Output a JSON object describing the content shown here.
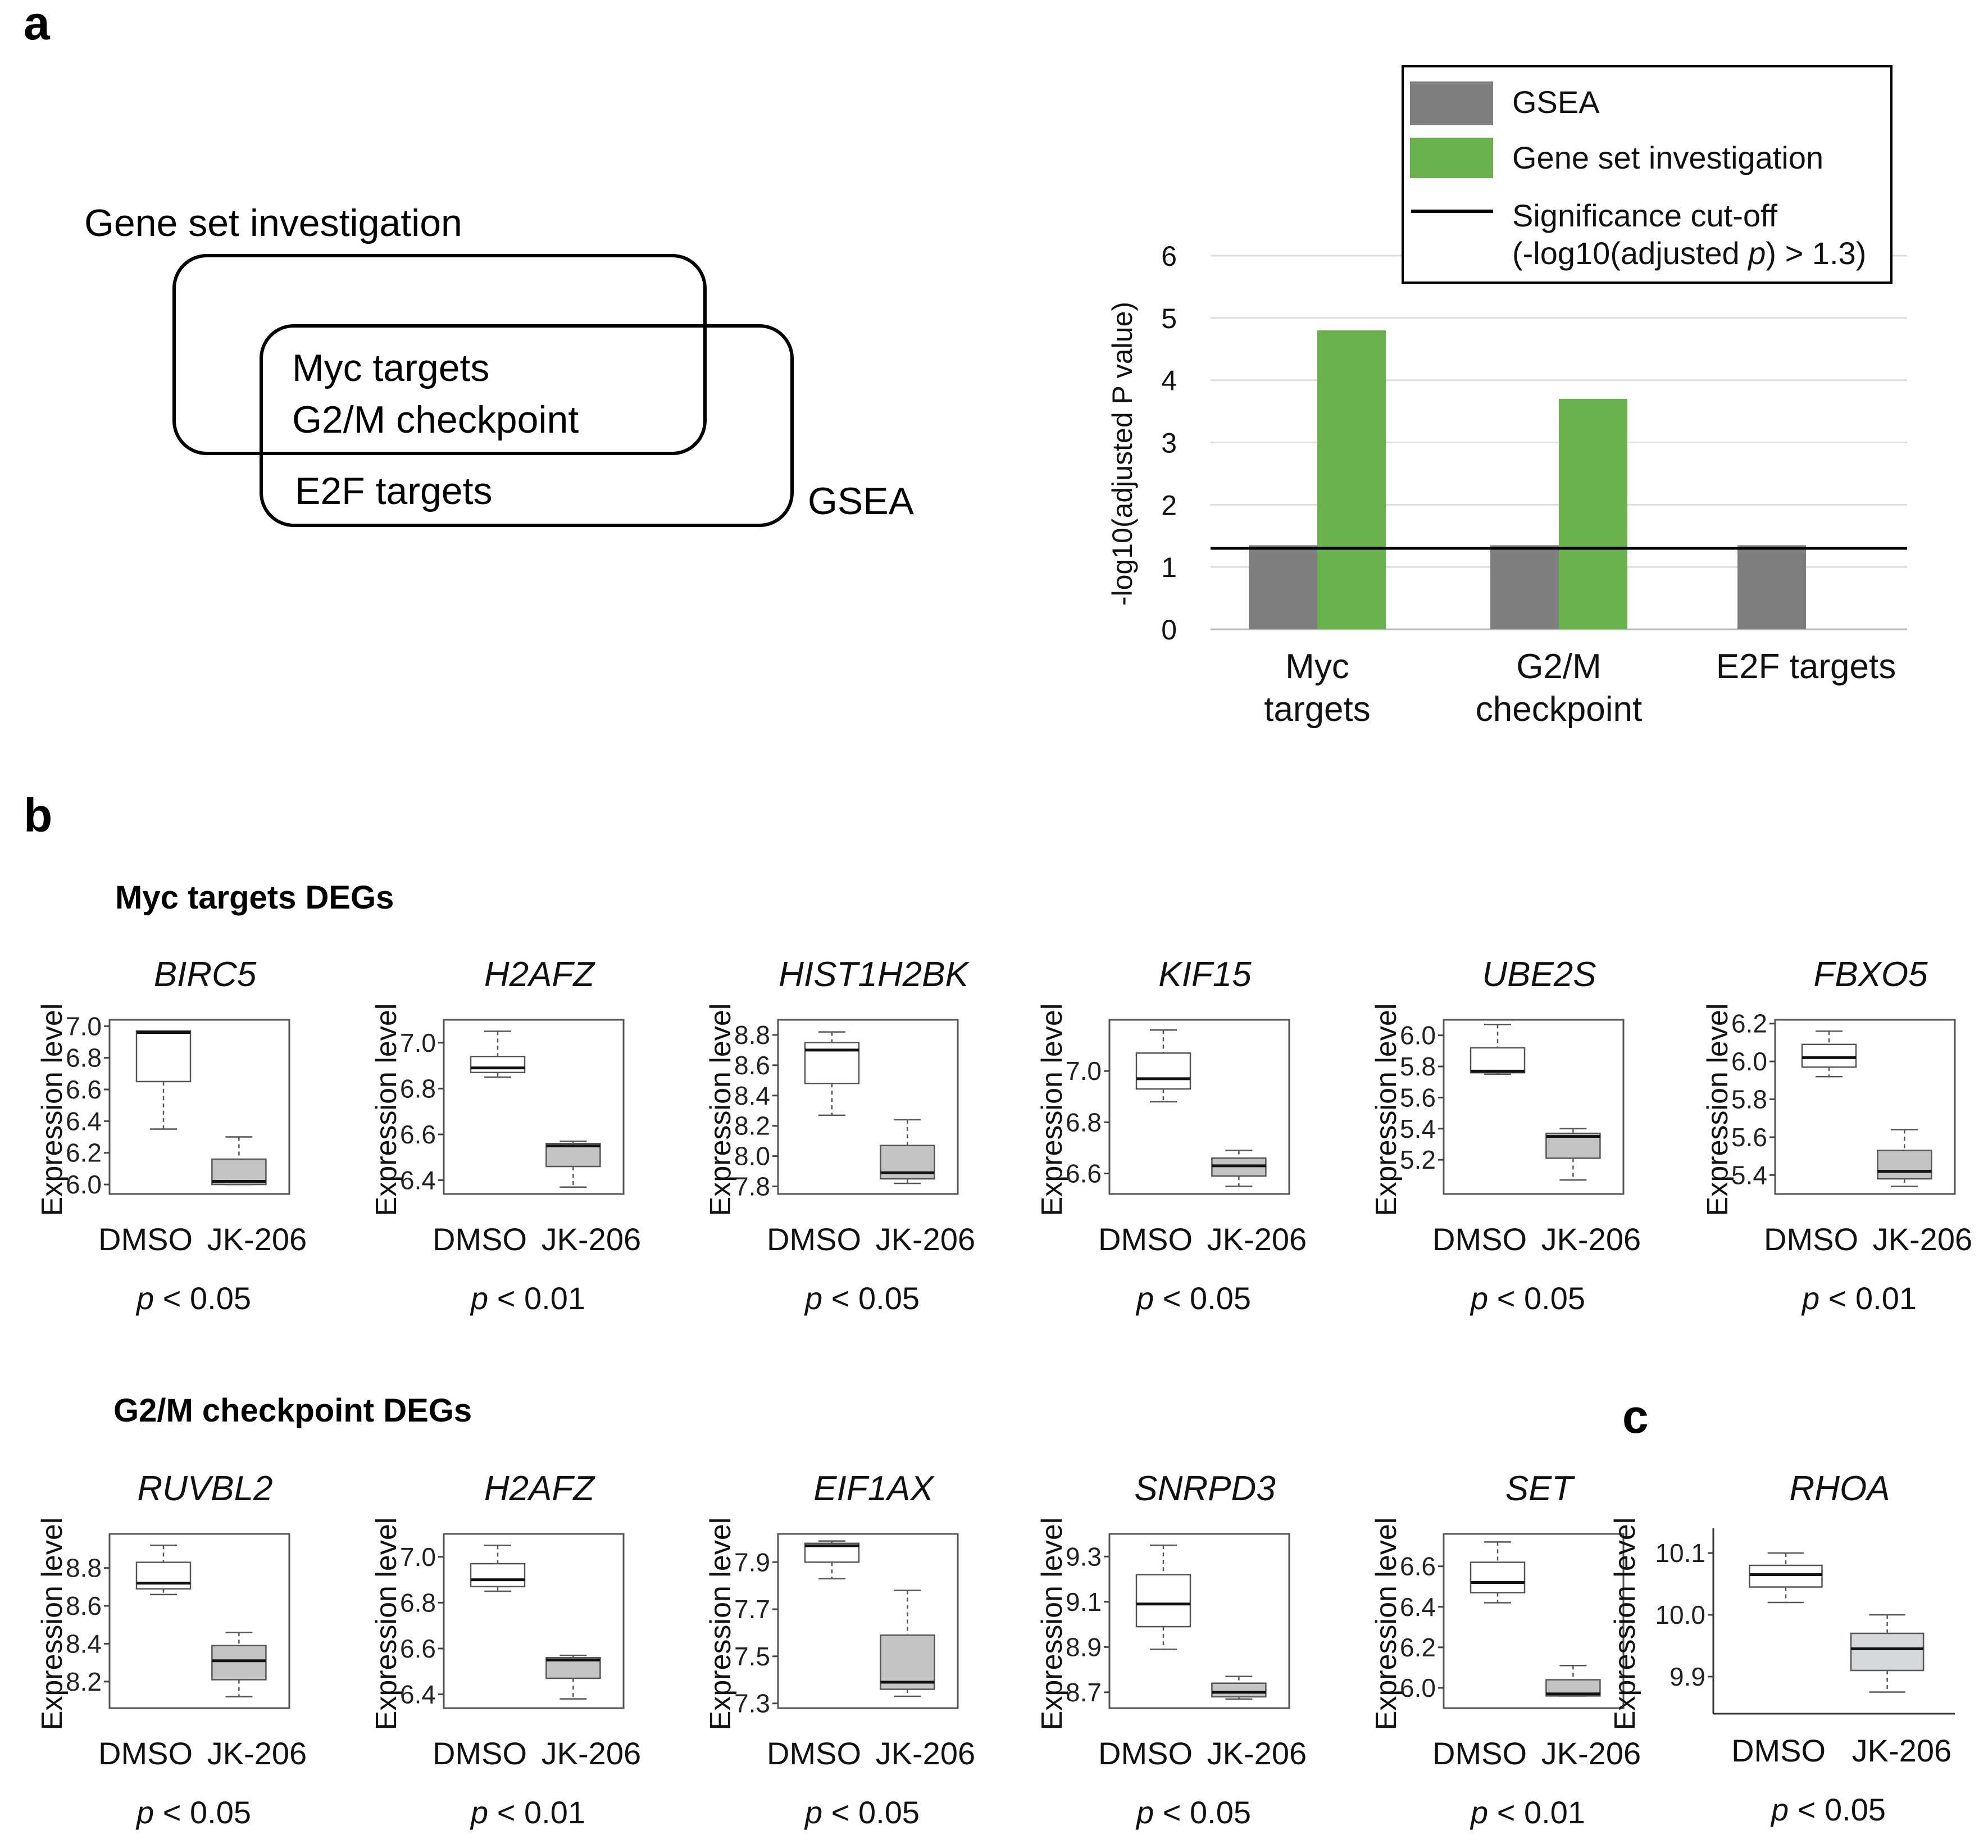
{
  "panel_labels": {
    "a": "a",
    "b": "b",
    "c": "c"
  },
  "venn": {
    "set_left": "Gene set investigation",
    "set_right": "GSEA",
    "overlap_items": [
      "Myc targets",
      "G2/M checkpoint"
    ],
    "right_only_items": [
      "E2F targets"
    ]
  },
  "sections": {
    "myc": "Myc targets DEGs",
    "g2m": "G2/M checkpoint DEGs"
  },
  "box_common": {
    "ylabel": "Expression level",
    "groups": [
      "DMSO",
      "JK-206"
    ]
  },
  "colors": {
    "gsea": "#7f7f7f",
    "gene_set": "#6ab04c",
    "box_dmso": "#ffffff",
    "box_jk": "#c4c4c4",
    "box_jk_rhoa": "#d5d9db"
  },
  "chart_data": [
    {
      "type": "bar",
      "id": "panel-a-bar",
      "title": "",
      "xlabel": "",
      "ylabel": "-log10(adjusted P value)",
      "categories": [
        [
          "Myc",
          "targets"
        ],
        [
          "G2/M",
          "checkpoint"
        ],
        [
          "E2F targets"
        ]
      ],
      "series": [
        {
          "name": "GSEA",
          "values": [
            1.35,
            1.35,
            1.35
          ]
        },
        {
          "name": "Gene set investigation",
          "values": [
            4.8,
            3.7,
            null
          ]
        }
      ],
      "reference_line": {
        "value": 1.3,
        "label_lines": [
          "Significance cut-off",
          "(-log10(adjusted ",
          "p",
          ") > 1.3)"
        ]
      },
      "ylim": [
        0,
        6
      ],
      "yticks": [
        0,
        1,
        2,
        3,
        4,
        5,
        6
      ],
      "legend_position": "top-right",
      "grid": true
    },
    {
      "type": "box",
      "id": "myc-birc5",
      "title": "BIRC5",
      "pvalue": "< 0.05",
      "ylim": [
        5.94,
        7.04
      ],
      "yticks": [
        "6.0",
        "6.2",
        "6.4",
        "6.6",
        "6.8",
        "7.0"
      ],
      "boxes": [
        {
          "group": "DMSO",
          "min": 6.35,
          "q1": 6.65,
          "median": 6.96,
          "q3": 6.97,
          "max": 6.97
        },
        {
          "group": "JK-206",
          "min": 6.0,
          "q1": 6.0,
          "median": 6.02,
          "q3": 6.16,
          "max": 6.3
        }
      ]
    },
    {
      "type": "box",
      "id": "myc-h2afz",
      "title": "H2AFZ",
      "pvalue": "< 0.01",
      "ylim": [
        6.34,
        7.1
      ],
      "yticks": [
        "6.4",
        "6.6",
        "6.8",
        "7.0"
      ],
      "boxes": [
        {
          "group": "DMSO",
          "min": 6.85,
          "q1": 6.87,
          "median": 6.89,
          "q3": 6.94,
          "max": 7.05
        },
        {
          "group": "JK-206",
          "min": 6.37,
          "q1": 6.46,
          "median": 6.55,
          "q3": 6.56,
          "max": 6.57
        }
      ]
    },
    {
      "type": "box",
      "id": "myc-hist1h2bk",
      "title": "HIST1H2BK",
      "pvalue": "< 0.05",
      "ylim": [
        7.75,
        8.9
      ],
      "yticks": [
        "7.8",
        "8.0",
        "8.2",
        "8.4",
        "8.6",
        "8.8"
      ],
      "boxes": [
        {
          "group": "DMSO",
          "min": 8.27,
          "q1": 8.48,
          "median": 8.7,
          "q3": 8.75,
          "max": 8.82
        },
        {
          "group": "JK-206",
          "min": 7.82,
          "q1": 7.85,
          "median": 7.89,
          "q3": 8.07,
          "max": 8.24
        }
      ]
    },
    {
      "type": "box",
      "id": "myc-kif15",
      "title": "KIF15",
      "pvalue": "< 0.05",
      "ylim": [
        6.52,
        7.2
      ],
      "yticks": [
        "6.6",
        "6.8",
        "7.0"
      ],
      "boxes": [
        {
          "group": "DMSO",
          "min": 6.88,
          "q1": 6.93,
          "median": 6.97,
          "q3": 7.07,
          "max": 7.16
        },
        {
          "group": "JK-206",
          "min": 6.55,
          "q1": 6.59,
          "median": 6.63,
          "q3": 6.66,
          "max": 6.69
        }
      ]
    },
    {
      "type": "box",
      "id": "myc-ube2s",
      "title": "UBE2S",
      "pvalue": "< 0.05",
      "ylim": [
        4.98,
        6.1
      ],
      "yticks": [
        "5.2",
        "5.4",
        "5.6",
        "5.8",
        "6.0"
      ],
      "boxes": [
        {
          "group": "DMSO",
          "min": 5.75,
          "q1": 5.76,
          "median": 5.77,
          "q3": 5.92,
          "max": 6.07
        },
        {
          "group": "JK-206",
          "min": 5.07,
          "q1": 5.21,
          "median": 5.35,
          "q3": 5.37,
          "max": 5.4
        }
      ]
    },
    {
      "type": "box",
      "id": "myc-fbxo5",
      "title": "FBXO5",
      "pvalue": "< 0.01",
      "ylim": [
        5.3,
        6.22
      ],
      "yticks": [
        "5.4",
        "5.6",
        "5.8",
        "6.0",
        "6.2"
      ],
      "boxes": [
        {
          "group": "DMSO",
          "min": 5.92,
          "q1": 5.97,
          "median": 6.02,
          "q3": 6.09,
          "max": 6.16
        },
        {
          "group": "JK-206",
          "min": 5.34,
          "q1": 5.38,
          "median": 5.42,
          "q3": 5.53,
          "max": 5.64
        }
      ]
    },
    {
      "type": "box",
      "id": "g2m-ruvbl2",
      "title": "RUVBL2",
      "pvalue": "< 0.05",
      "ylim": [
        8.06,
        8.98
      ],
      "yticks": [
        "8.2",
        "8.4",
        "8.6",
        "8.8"
      ],
      "boxes": [
        {
          "group": "DMSO",
          "min": 8.66,
          "q1": 8.69,
          "median": 8.72,
          "q3": 8.83,
          "max": 8.92
        },
        {
          "group": "JK-206",
          "min": 8.12,
          "q1": 8.21,
          "median": 8.31,
          "q3": 8.39,
          "max": 8.46
        }
      ]
    },
    {
      "type": "box",
      "id": "g2m-h2afz",
      "title": "H2AFZ",
      "pvalue": "< 0.01",
      "ylim": [
        6.34,
        7.1
      ],
      "yticks": [
        "6.4",
        "6.6",
        "6.8",
        "7.0"
      ],
      "boxes": [
        {
          "group": "DMSO",
          "min": 6.85,
          "q1": 6.87,
          "median": 6.9,
          "q3": 6.97,
          "max": 7.05
        },
        {
          "group": "JK-206",
          "min": 6.38,
          "q1": 6.47,
          "median": 6.55,
          "q3": 6.56,
          "max": 6.57
        }
      ]
    },
    {
      "type": "box",
      "id": "g2m-eif1ax",
      "title": "EIF1AX",
      "pvalue": "< 0.05",
      "ylim": [
        7.28,
        8.02
      ],
      "yticks": [
        "7.3",
        "7.5",
        "7.7",
        "7.9"
      ],
      "boxes": [
        {
          "group": "DMSO",
          "min": 7.83,
          "q1": 7.9,
          "median": 7.97,
          "q3": 7.98,
          "max": 7.99
        },
        {
          "group": "JK-206",
          "min": 7.33,
          "q1": 7.36,
          "median": 7.39,
          "q3": 7.59,
          "max": 7.78
        }
      ]
    },
    {
      "type": "box",
      "id": "g2m-snrpd3",
      "title": "SNRPD3",
      "pvalue": "< 0.05",
      "ylim": [
        8.63,
        9.4
      ],
      "yticks": [
        "8.7",
        "8.9",
        "9.1",
        "9.3"
      ],
      "boxes": [
        {
          "group": "DMSO",
          "min": 8.89,
          "q1": 8.99,
          "median": 9.09,
          "q3": 9.22,
          "max": 9.35
        },
        {
          "group": "JK-206",
          "min": 8.67,
          "q1": 8.68,
          "median": 8.7,
          "q3": 8.74,
          "max": 8.77
        }
      ]
    },
    {
      "type": "box",
      "id": "g2m-set",
      "title": "SET",
      "pvalue": "< 0.01",
      "ylim": [
        5.9,
        6.76
      ],
      "yticks": [
        "6.0",
        "6.2",
        "6.4",
        "6.6"
      ],
      "boxes": [
        {
          "group": "DMSO",
          "min": 6.42,
          "q1": 6.47,
          "median": 6.52,
          "q3": 6.62,
          "max": 6.72
        },
        {
          "group": "JK-206",
          "min": 5.96,
          "q1": 5.96,
          "median": 5.97,
          "q3": 6.04,
          "max": 6.11
        }
      ]
    },
    {
      "type": "box",
      "id": "c-rhoa",
      "title": "RHOA",
      "pvalue": "< 0.05",
      "ylim": [
        9.84,
        10.14
      ],
      "yticks": [
        "9.9",
        "10.0",
        "10.1"
      ],
      "boxes": [
        {
          "group": "DMSO",
          "min": 10.02,
          "q1": 10.045,
          "median": 10.065,
          "q3": 10.08,
          "max": 10.1
        },
        {
          "group": "JK-206",
          "min": 9.875,
          "q1": 9.91,
          "median": 9.945,
          "q3": 9.97,
          "max": 10.0
        }
      ]
    }
  ]
}
